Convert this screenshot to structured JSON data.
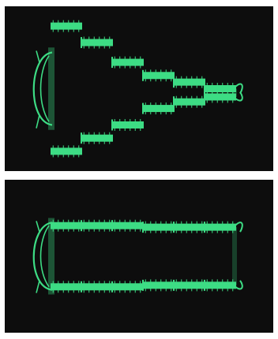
{
  "scene": {
    "background": "#ffffff",
    "panel_color": "#0d0d0d",
    "trace_color": "#3ddc84",
    "panels": [
      {
        "id": "top",
        "pattern": "stepped-converging-envelope",
        "step_levels_upper": [
          0.12,
          0.22,
          0.34,
          0.42,
          0.46,
          0.5
        ],
        "step_levels_lower": [
          0.88,
          0.8,
          0.72,
          0.62,
          0.58,
          0.55
        ]
      },
      {
        "id": "bottom",
        "pattern": "uniform-envelope",
        "step_levels_upper": [
          0.3,
          0.3,
          0.3,
          0.31,
          0.31,
          0.31
        ],
        "step_levels_lower": [
          0.7,
          0.7,
          0.7,
          0.69,
          0.69,
          0.69
        ]
      }
    ]
  }
}
